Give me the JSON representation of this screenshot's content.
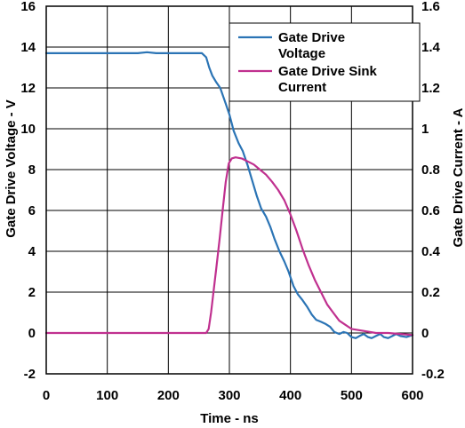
{
  "chart_data": {
    "type": "line",
    "xlabel": "Time - ns",
    "ylabel_left": "Gate Drive Voltage - V",
    "ylabel_right": "Gate Drive Current - A",
    "xlim": [
      0,
      600
    ],
    "ylim_left": [
      -2,
      16
    ],
    "ylim_right": [
      -0.2,
      1.6
    ],
    "x_ticks": [
      "0",
      "100",
      "200",
      "300",
      "400",
      "500",
      "600"
    ],
    "y_left_ticks": [
      "-2",
      "0",
      "2",
      "4",
      "6",
      "8",
      "10",
      "12",
      "14",
      "16"
    ],
    "y_right_ticks": [
      "-0.2",
      "0",
      "0.2",
      "0.4",
      "0.6",
      "0.8",
      "1",
      "1.2",
      "1.4",
      "1.6"
    ],
    "grid": true,
    "legend_position": "top-right",
    "series": [
      {
        "name": "Gate Drive Voltage",
        "axis": "left",
        "color": "#2b74b5",
        "points": [
          [
            0,
            13.7
          ],
          [
            150,
            13.7
          ],
          [
            165,
            13.75
          ],
          [
            180,
            13.7
          ],
          [
            255,
            13.7
          ],
          [
            262,
            13.5
          ],
          [
            267,
            13.0
          ],
          [
            272,
            12.6
          ],
          [
            278,
            12.3
          ],
          [
            285,
            12.0
          ],
          [
            292,
            11.4
          ],
          [
            300,
            10.7
          ],
          [
            307,
            9.9
          ],
          [
            315,
            9.3
          ],
          [
            322,
            8.9
          ],
          [
            330,
            8.2
          ],
          [
            338,
            7.4
          ],
          [
            345,
            6.7
          ],
          [
            352,
            6.1
          ],
          [
            360,
            5.7
          ],
          [
            367,
            5.2
          ],
          [
            374,
            4.6
          ],
          [
            382,
            4.0
          ],
          [
            390,
            3.5
          ],
          [
            397,
            3.0
          ],
          [
            405,
            2.3
          ],
          [
            412,
            1.9
          ],
          [
            420,
            1.6
          ],
          [
            427,
            1.3
          ],
          [
            435,
            0.9
          ],
          [
            442,
            0.65
          ],
          [
            450,
            0.55
          ],
          [
            457,
            0.45
          ],
          [
            465,
            0.3
          ],
          [
            472,
            0.05
          ],
          [
            480,
            -0.05
          ],
          [
            487,
            0.05
          ],
          [
            493,
            0.0
          ],
          [
            500,
            -0.2
          ],
          [
            507,
            -0.25
          ],
          [
            513,
            -0.15
          ],
          [
            520,
            -0.05
          ],
          [
            527,
            -0.2
          ],
          [
            533,
            -0.25
          ],
          [
            540,
            -0.15
          ],
          [
            547,
            -0.05
          ],
          [
            553,
            -0.2
          ],
          [
            560,
            -0.25
          ],
          [
            567,
            -0.15
          ],
          [
            573,
            -0.05
          ],
          [
            580,
            -0.15
          ],
          [
            590,
            -0.2
          ],
          [
            600,
            -0.1
          ]
        ]
      },
      {
        "name": "Gate Drive Sink Current",
        "axis": "right",
        "color": "#c0308f",
        "points": [
          [
            0,
            0.0
          ],
          [
            262,
            0.0
          ],
          [
            266,
            0.02
          ],
          [
            270,
            0.1
          ],
          [
            274,
            0.2
          ],
          [
            279,
            0.33
          ],
          [
            284,
            0.46
          ],
          [
            289,
            0.6
          ],
          [
            294,
            0.74
          ],
          [
            299,
            0.83
          ],
          [
            304,
            0.855
          ],
          [
            310,
            0.86
          ],
          [
            320,
            0.855
          ],
          [
            330,
            0.84
          ],
          [
            340,
            0.825
          ],
          [
            350,
            0.8
          ],
          [
            360,
            0.775
          ],
          [
            370,
            0.74
          ],
          [
            380,
            0.7
          ],
          [
            390,
            0.65
          ],
          [
            400,
            0.58
          ],
          [
            410,
            0.5
          ],
          [
            420,
            0.41
          ],
          [
            430,
            0.33
          ],
          [
            440,
            0.26
          ],
          [
            450,
            0.2
          ],
          [
            460,
            0.14
          ],
          [
            470,
            0.1
          ],
          [
            480,
            0.06
          ],
          [
            490,
            0.04
          ],
          [
            500,
            0.02
          ],
          [
            520,
            0.01
          ],
          [
            540,
            0.0
          ],
          [
            560,
            0.0
          ],
          [
            580,
            -0.005
          ],
          [
            600,
            -0.01
          ]
        ]
      }
    ]
  }
}
